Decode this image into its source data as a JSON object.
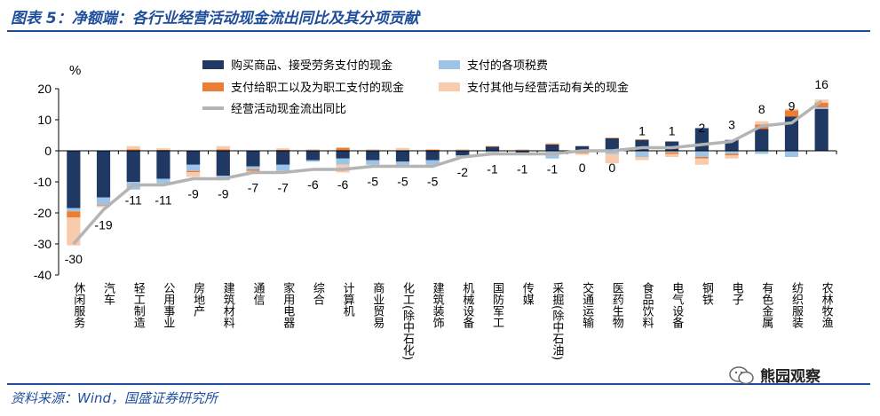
{
  "title": "图表 5：净额端：各行业经营活动现金流出同比及其分项贡献",
  "source": "资料来源：Wind，国盛证券研究所",
  "watermark": "熊园观察",
  "chart_data": {
    "type": "bar",
    "stacked": true,
    "unit_label": "%",
    "ylim": [
      -40,
      20
    ],
    "yticks": [
      20,
      10,
      0,
      -10,
      -20,
      -30,
      -40
    ],
    "categories": [
      "休闲服务",
      "汽车",
      "轻工制造",
      "公用事业",
      "房地产",
      "建筑材料",
      "通信",
      "家用电器",
      "综合",
      "计算机",
      "商业贸易",
      "化工(除中石化)",
      "建筑装饰",
      "机械设备",
      "国防军工",
      "传媒",
      "采掘(除中石油)",
      "交通运输",
      "医药生物",
      "食品饮料",
      "电气设备",
      "钢铁",
      "电子",
      "有色金属",
      "纺织服装",
      "农林牧渔"
    ],
    "series": [
      {
        "name": "购买商品、接受劳务支付的现金",
        "color": "#1f3864",
        "values": [
          -18.5,
          -15,
          -10,
          -9,
          -4.5,
          -8,
          -5,
          -4.5,
          -3,
          -2.5,
          -3,
          -3.5,
          -3,
          -1.5,
          1.3,
          -0.8,
          2,
          1.5,
          4,
          3.5,
          3,
          7.3,
          3.5,
          7,
          11,
          13.5
        ]
      },
      {
        "name": "支付的各项税费",
        "color": "#9dc3e6",
        "values": [
          -1,
          -2.5,
          -2.5,
          -1.5,
          -2,
          -1.5,
          -1,
          -2,
          -0.5,
          -2,
          -1.5,
          -1.5,
          -1.5,
          -0.5,
          -0.5,
          -0.5,
          -2.5,
          -0.5,
          -1,
          -2,
          -0.5,
          -2,
          -1,
          -1,
          -2,
          0.5
        ]
      },
      {
        "name": "支付给职工以及为职工支付的现金",
        "color": "#ed7d31",
        "values": [
          -2,
          -0.2,
          0.5,
          0.3,
          -0.4,
          0.5,
          -0.5,
          0.3,
          0.2,
          1,
          0.2,
          0.2,
          0.3,
          0.2,
          0.2,
          0.2,
          0.2,
          -0.3,
          0.2,
          0.2,
          -0.5,
          -0.5,
          -0.5,
          1.5,
          2,
          1.5
        ]
      },
      {
        "name": "支付其他与经营活动有关的现金",
        "color": "#f8cbad",
        "values": [
          -9,
          -0.5,
          1,
          0.5,
          -1.5,
          1,
          -0.5,
          0.5,
          0.3,
          -2.5,
          0.3,
          0.7,
          0.3,
          0.3,
          -0.5,
          0.3,
          0.3,
          -0.5,
          -3,
          -1,
          -1,
          -2,
          -1,
          1,
          0.5,
          1
        ]
      }
    ],
    "line": {
      "name": "经营活动现金流出同比",
      "color": "#b4b4b4",
      "values": [
        -30,
        -19,
        -11,
        -11,
        -9,
        -9,
        -7,
        -7,
        -6,
        -6,
        -5,
        -5,
        -5,
        -2,
        -1,
        -1,
        -1,
        0,
        0,
        1,
        1,
        2,
        3,
        8,
        9,
        16
      ]
    },
    "data_labels": [
      "-30",
      "-19",
      "-11",
      "-11",
      "-9",
      "-9",
      "-7",
      "-7",
      "-6",
      "-6",
      "-5",
      "-5",
      "-5",
      "-2",
      "-1",
      "-1",
      "-1",
      "0",
      "0",
      "1",
      "1",
      "2",
      "3",
      "8",
      "9",
      "16"
    ],
    "legend_position": "top",
    "grid": false
  }
}
